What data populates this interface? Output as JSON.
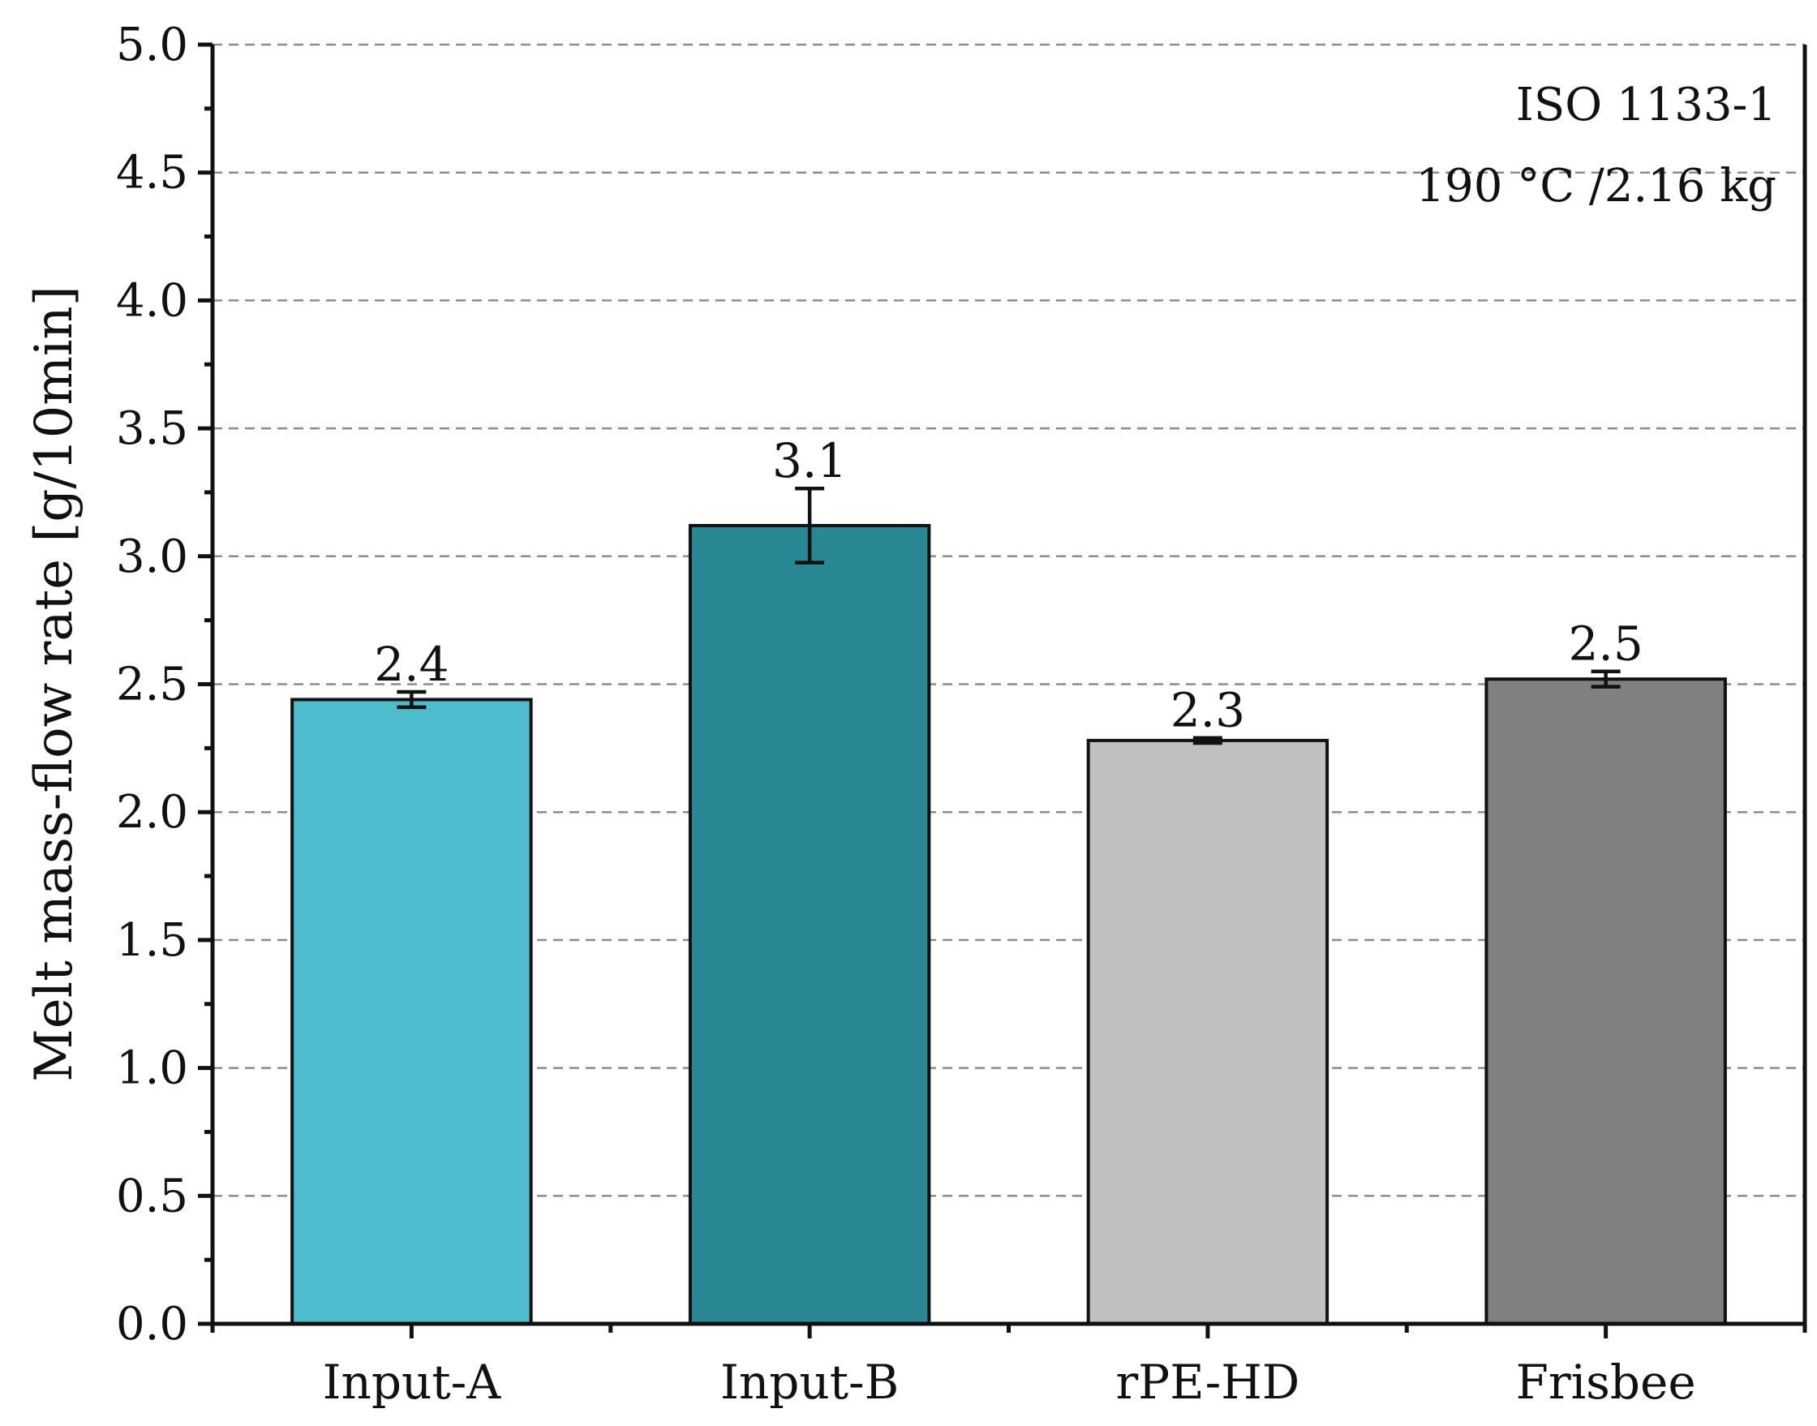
{
  "chart_data": {
    "type": "bar",
    "title": "",
    "xlabel": "",
    "ylabel": "Melt mass-flow rate [g/10min]",
    "ylim": [
      0,
      5.0
    ],
    "yticks": [
      "0.0",
      "0.5",
      "1.0",
      "1.5",
      "2.0",
      "2.5",
      "3.0",
      "3.5",
      "4.0",
      "4.5",
      "5.0"
    ],
    "grid": true,
    "categories": [
      "Input-A",
      "Input-B",
      "rPE-HD",
      "Frisbee"
    ],
    "values": [
      2.44,
      3.12,
      2.28,
      2.52
    ],
    "errors": [
      0.03,
      0.145,
      0.01,
      0.03
    ],
    "data_labels": [
      "2.4",
      "3.1",
      "2.3",
      "2.5"
    ],
    "colors": [
      "#4dbccc",
      "#2a8794",
      "#c0c0c0",
      "#808080"
    ],
    "annotations": [
      "ISO 1133-1",
      "190 °C /2.16 kg"
    ]
  }
}
